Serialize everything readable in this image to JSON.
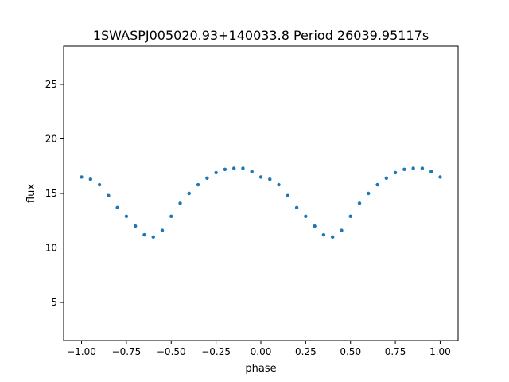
{
  "chart_data": {
    "type": "scatter",
    "title": "1SWASPJ005020.93+140033.8 Period 26039.95117s",
    "xlabel": "phase",
    "ylabel": "flux",
    "xlim": [
      -1.1,
      1.1
    ],
    "ylim": [
      1.5,
      28.5
    ],
    "x_ticks": [
      -1.0,
      -0.75,
      -0.5,
      -0.25,
      0.0,
      0.25,
      0.5,
      0.75,
      1.0
    ],
    "x_tick_labels": [
      "−1.00",
      "−0.75",
      "−0.50",
      "−0.25",
      "0.00",
      "0.25",
      "0.50",
      "0.75",
      "1.00"
    ],
    "y_ticks": [
      5,
      10,
      15,
      20,
      25
    ],
    "y_tick_labels": [
      "5",
      "10",
      "15",
      "20",
      "25"
    ],
    "grid": false,
    "series": [
      {
        "color": "#1f77b4",
        "x": [
          -1.0,
          -0.95,
          -0.9,
          -0.85,
          -0.8,
          -0.75,
          -0.7,
          -0.65,
          -0.6,
          -0.55,
          -0.5,
          -0.45,
          -0.4,
          -0.35,
          -0.3,
          -0.25,
          -0.2,
          -0.15,
          -0.1,
          -0.05,
          0.0,
          0.05,
          0.1,
          0.15,
          0.2,
          0.25,
          0.3,
          0.35,
          0.4,
          0.45,
          0.5,
          0.55,
          0.6,
          0.65,
          0.7,
          0.75,
          0.8,
          0.85,
          0.9,
          0.95,
          1.0
        ],
        "y": [
          16.5,
          16.3,
          15.8,
          14.8,
          13.7,
          12.9,
          12.0,
          11.2,
          11.0,
          11.6,
          12.9,
          14.1,
          15.0,
          15.8,
          16.4,
          16.9,
          17.2,
          17.3,
          17.3,
          17.0,
          16.5,
          16.3,
          15.8,
          14.8,
          13.7,
          12.9,
          12.0,
          11.2,
          11.0,
          11.6,
          12.9,
          14.1,
          15.0,
          15.8,
          16.4,
          16.9,
          17.2,
          17.3,
          17.3,
          17.0,
          16.5
        ]
      }
    ]
  }
}
